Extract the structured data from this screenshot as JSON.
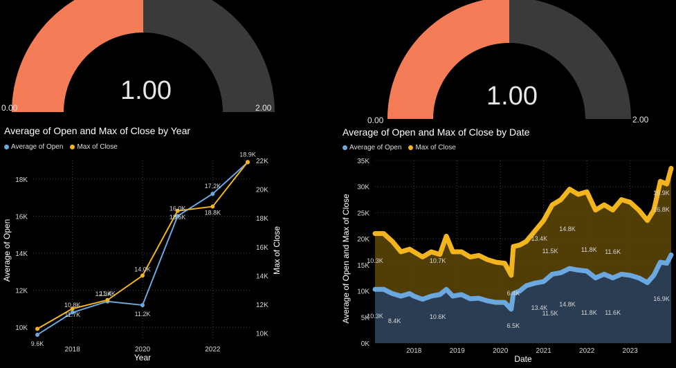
{
  "colors": {
    "gauge_fill": "#F47C57",
    "gauge_track": "#3B3A39",
    "open": "#6CA8E0",
    "close": "#F2B51E",
    "close_area": "#5A4508",
    "open_area": "#2B3D52",
    "grid": "#444444",
    "text": "#D8D8D8"
  },
  "gauges": [
    {
      "value_label": "1.00",
      "value": 1.0,
      "min_label": "0.00",
      "max_label": "2.00",
      "min": 0,
      "max": 2
    },
    {
      "value_label": "1.00",
      "value": 1.0,
      "min_label": "0.00",
      "max_label": "2.00",
      "min": 0,
      "max": 2
    }
  ],
  "legend": {
    "open": "Average of Open",
    "close": "Max of Close"
  },
  "chart_data": [
    {
      "type": "line",
      "title": "Average of Open and Max of Close by Year",
      "xlabel": "Year",
      "ylabel": "Average of Open",
      "y2label": "Max of Close",
      "x": [
        2017,
        2018,
        2019,
        2020,
        2021,
        2022,
        2023
      ],
      "x_ticks": [
        "2018",
        "2020",
        "2022"
      ],
      "y_ticks": [
        "10K",
        "12K",
        "14K",
        "16K",
        "18K"
      ],
      "y2_ticks": [
        "10K",
        "12K",
        "14K",
        "16K",
        "18K",
        "20K",
        "22K"
      ],
      "ylim": [
        9300,
        19000
      ],
      "y2lim": [
        9500,
        22000
      ],
      "series": [
        {
          "name": "Average of Open",
          "axis": "left",
          "values": [
            9600,
            10800,
            11400,
            11200,
            16000,
            17200,
            18900
          ],
          "labels": [
            "9.6K",
            "10.8K",
            "11.4K",
            "11.2K",
            "16.0K",
            "17.2K",
            "18.9K"
          ]
        },
        {
          "name": "Max of Close",
          "axis": "right",
          "values": [
            10300,
            11700,
            12300,
            14000,
            18500,
            18800,
            21900
          ],
          "labels": [
            "",
            "11.7K",
            "12.3K",
            "14.0K",
            "18.5K",
            "18.8K",
            ""
          ]
        }
      ]
    },
    {
      "type": "area",
      "title": "Average of Open and Max of Close by Date",
      "xlabel": "Date",
      "ylabel": "Average of Open and Max of Close",
      "x_ticks": [
        "2018",
        "2019",
        "2020",
        "2021",
        "2022",
        "2023"
      ],
      "y_ticks": [
        "0K",
        "5K",
        "10K",
        "15K",
        "20K",
        "25K",
        "30K",
        "35K"
      ],
      "ylim": [
        0,
        35000
      ],
      "xlim": [
        2017.1,
        2023.95
      ],
      "series": [
        {
          "name": "Max of Close",
          "x": [
            2017.1,
            2017.3,
            2017.5,
            2017.7,
            2017.9,
            2018.0,
            2018.2,
            2018.4,
            2018.6,
            2018.75,
            2018.9,
            2019.1,
            2019.3,
            2019.5,
            2019.7,
            2019.9,
            2020.1,
            2020.25,
            2020.3,
            2020.45,
            2020.6,
            2020.8,
            2021.0,
            2021.2,
            2021.4,
            2021.6,
            2021.8,
            2022.0,
            2022.2,
            2022.4,
            2022.6,
            2022.8,
            2023.0,
            2023.2,
            2023.4,
            2023.55,
            2023.7,
            2023.85,
            2023.95
          ],
          "values": [
            21000,
            21000,
            19500,
            17500,
            18000,
            17500,
            16500,
            17500,
            17000,
            20500,
            17500,
            17500,
            16500,
            16800,
            16000,
            15500,
            15300,
            13000,
            18500,
            18800,
            19500,
            21500,
            23500,
            26500,
            27500,
            29500,
            28500,
            29000,
            25500,
            26500,
            25500,
            27500,
            27000,
            25500,
            23500,
            25500,
            31000,
            30500,
            33500
          ],
          "labels": [
            {
              "x": 2017.1,
              "text": "10.3K"
            },
            {
              "x": 2018.55,
              "text": "10.7K"
            },
            {
              "x": 2020.3,
              "text": "6.4K"
            },
            {
              "x": 2020.9,
              "text": "13.4K"
            },
            {
              "x": 2021.15,
              "text": "11.5K"
            },
            {
              "x": 2021.55,
              "text": "14.8K"
            },
            {
              "x": 2022.05,
              "text": "11.8K"
            },
            {
              "x": 2022.6,
              "text": "11.6K"
            },
            {
              "x": 2023.9,
              "text": "16.9K"
            },
            {
              "x": 2023.88,
              "text": "16.8K"
            }
          ]
        },
        {
          "name": "Average of Open",
          "x": [
            2017.1,
            2017.3,
            2017.5,
            2017.7,
            2017.9,
            2018.0,
            2018.2,
            2018.4,
            2018.6,
            2018.75,
            2018.9,
            2019.1,
            2019.3,
            2019.5,
            2019.7,
            2019.9,
            2020.1,
            2020.25,
            2020.3,
            2020.45,
            2020.6,
            2020.8,
            2021.0,
            2021.2,
            2021.4,
            2021.6,
            2021.8,
            2022.0,
            2022.2,
            2022.4,
            2022.6,
            2022.8,
            2023.0,
            2023.2,
            2023.4,
            2023.55,
            2023.7,
            2023.85,
            2023.95
          ],
          "values": [
            10300,
            10300,
            9500,
            9000,
            9500,
            9000,
            8400,
            9000,
            9300,
            10300,
            9000,
            9300,
            8500,
            8600,
            8100,
            7800,
            7800,
            6500,
            9500,
            10000,
            11000,
            11500,
            11800,
            13200,
            13500,
            14300,
            14000,
            13800,
            12500,
            13200,
            12500,
            13200,
            13000,
            12500,
            11600,
            13000,
            15500,
            15300,
            16900
          ],
          "labels": [
            {
              "x": 2017.1,
              "text": "10.3K"
            },
            {
              "x": 2017.55,
              "text": "8.4K"
            },
            {
              "x": 2018.55,
              "text": "10.6K"
            },
            {
              "x": 2020.3,
              "text": "6.5K"
            },
            {
              "x": 2020.9,
              "text": "13.4K"
            },
            {
              "x": 2021.15,
              "text": "11.5K"
            },
            {
              "x": 2021.55,
              "text": "14.8K"
            },
            {
              "x": 2022.05,
              "text": "11.8K"
            },
            {
              "x": 2022.6,
              "text": "11.6K"
            },
            {
              "x": 2023.9,
              "text": "16.9K"
            }
          ]
        }
      ]
    }
  ]
}
